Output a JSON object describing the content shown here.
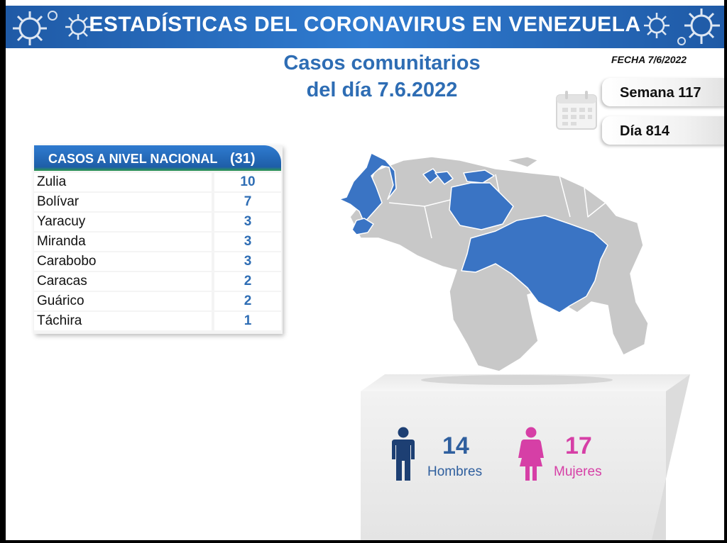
{
  "banner": {
    "title": "ESTADÍSTICAS DEL CORONAVIRUS EN VENEZUELA"
  },
  "subtitle": {
    "line1": "Casos comunitarios",
    "line2": "del día 7.6.2022"
  },
  "fecha": "FECHA 7/6/2022",
  "semana": "Semana 117",
  "dia": "Día 814",
  "table": {
    "title": "CASOS A NIVEL NACIONAL",
    "total": "(31)",
    "rows": [
      {
        "name": "Zulia",
        "value": "10"
      },
      {
        "name": "Bolívar",
        "value": "7"
      },
      {
        "name": "Yaracuy",
        "value": "3"
      },
      {
        "name": "Miranda",
        "value": "3"
      },
      {
        "name": "Carabobo",
        "value": "3"
      },
      {
        "name": "Caracas",
        "value": "2"
      },
      {
        "name": "Guárico",
        "value": "2"
      },
      {
        "name": "Táchira",
        "value": "1"
      }
    ]
  },
  "gender": {
    "men": {
      "count": "14",
      "label": "Hombres"
    },
    "women": {
      "count": "17",
      "label": "Mujeres"
    }
  },
  "colors": {
    "banner": "#2f7bd0",
    "highlight_state": "#3a74c4",
    "other_state": "#c8c8c8",
    "men": "#1d3f73",
    "women": "#d63fa6",
    "title_blue": "#2e6db4"
  },
  "icons": [
    "virus-icon",
    "calendar-icon",
    "man-icon",
    "woman-icon"
  ]
}
